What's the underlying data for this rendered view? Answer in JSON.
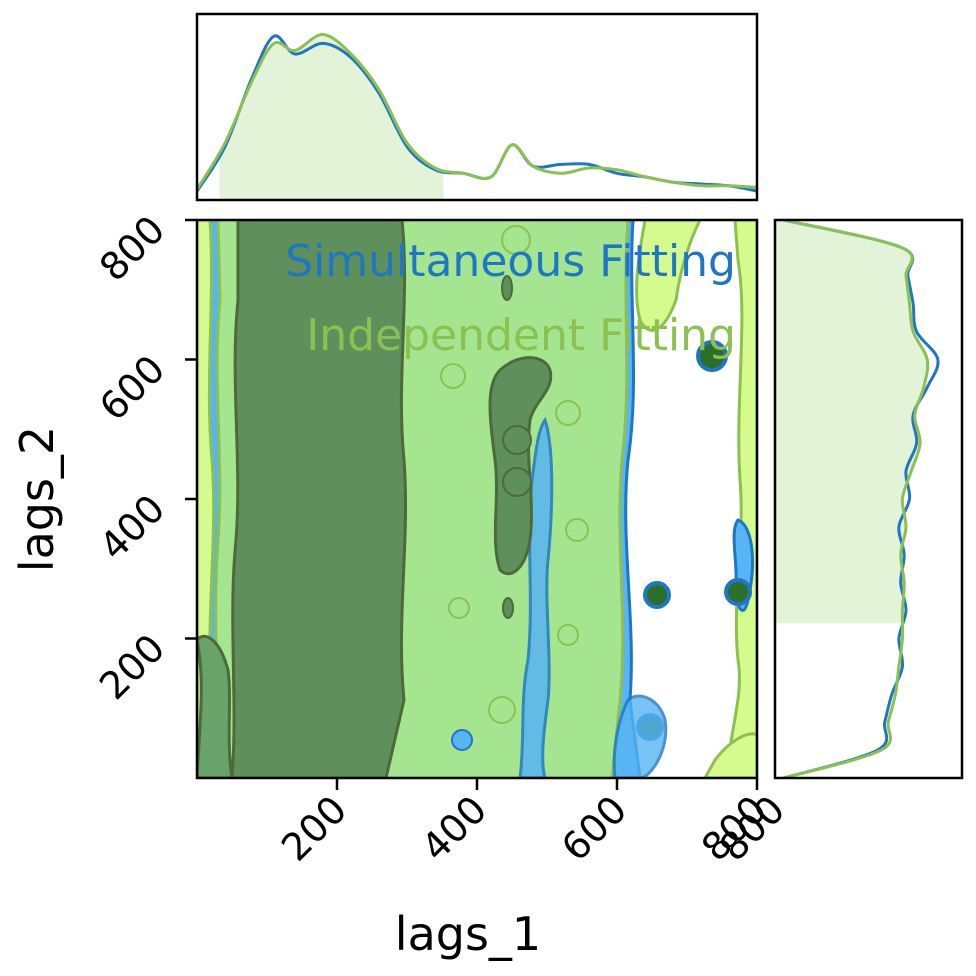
{
  "chart_data": {
    "type": "corner",
    "title": "",
    "xlabel": "lags_1",
    "ylabel": "lags_2",
    "xlim": [
      0,
      800
    ],
    "ylim": [
      0,
      800
    ],
    "x_ticks": [
      200,
      400,
      600,
      800
    ],
    "y_ticks": [
      200,
      400,
      600,
      800
    ],
    "x_tick_labels": [
      "200",
      "400",
      "600",
      "800"
    ],
    "y_tick_labels": [
      "200",
      "400",
      "600",
      "800"
    ],
    "right_tick_labels": [
      "800"
    ],
    "legend_placement": "top-right",
    "grid": false,
    "series": [
      {
        "name": "Simultaneous Fitting",
        "color": "#1f77c4",
        "fill_colors": [
          "#2a6f2a",
          "#57b4f5"
        ],
        "marginal_x": {
          "x": [
            0,
            40,
            80,
            110,
            140,
            180,
            220,
            260,
            300,
            340,
            380,
            420,
            450,
            480,
            520,
            560,
            600,
            640,
            680,
            720,
            760,
            800
          ],
          "density": [
            0.05,
            0.3,
            0.7,
            0.92,
            0.82,
            0.88,
            0.8,
            0.6,
            0.3,
            0.17,
            0.15,
            0.13,
            0.31,
            0.19,
            0.2,
            0.2,
            0.15,
            0.13,
            0.1,
            0.09,
            0.08,
            0.05
          ]
        },
        "marginal_y": {
          "y": [
            0,
            40,
            80,
            120,
            160,
            200,
            240,
            280,
            320,
            360,
            400,
            440,
            480,
            520,
            560,
            600,
            640,
            680,
            720,
            760,
            800
          ],
          "density": [
            0.05,
            0.58,
            0.62,
            0.66,
            0.72,
            0.7,
            0.74,
            0.71,
            0.73,
            0.7,
            0.76,
            0.74,
            0.8,
            0.78,
            0.86,
            0.92,
            0.8,
            0.78,
            0.75,
            0.72,
            0.05
          ]
        }
      },
      {
        "name": "Independent Fitting",
        "color": "#8cc152",
        "fill_colors": [
          "#5f8f5a",
          "#a6e58f",
          "#d5fb8f"
        ],
        "marginal_x": {
          "x": [
            0,
            40,
            80,
            110,
            140,
            180,
            220,
            260,
            300,
            340,
            380,
            420,
            450,
            480,
            520,
            560,
            600,
            640,
            680,
            720,
            760,
            800
          ],
          "density": [
            0.06,
            0.32,
            0.68,
            0.88,
            0.84,
            0.93,
            0.82,
            0.62,
            0.32,
            0.18,
            0.15,
            0.13,
            0.31,
            0.19,
            0.15,
            0.18,
            0.17,
            0.13,
            0.1,
            0.08,
            0.08,
            0.07
          ]
        },
        "marginal_y": {
          "y": [
            0,
            40,
            80,
            120,
            160,
            200,
            240,
            280,
            320,
            360,
            400,
            440,
            480,
            520,
            560,
            600,
            640,
            680,
            720,
            760,
            800
          ],
          "density": [
            0.05,
            0.6,
            0.64,
            0.68,
            0.7,
            0.72,
            0.72,
            0.73,
            0.71,
            0.74,
            0.72,
            0.77,
            0.82,
            0.79,
            0.84,
            0.86,
            0.78,
            0.76,
            0.74,
            0.72,
            0.05
          ]
        }
      }
    ],
    "marginal_x_shaded_range": [
      32,
      352
    ],
    "marginal_y_shaded_range": [
      222,
      800
    ],
    "contour_regions": [
      {
        "level": "outer",
        "color": "#57b4f5",
        "x_range": [
          0,
          630
        ],
        "y_range": [
          0,
          800
        ]
      },
      {
        "level": "middle",
        "color": "#a6e58f",
        "x_range": [
          10,
          620
        ],
        "y_range": [
          0,
          800
        ]
      },
      {
        "level": "inner",
        "color": "#2a6f2a",
        "x_range": [
          50,
          295
        ],
        "y_range": [
          0,
          800
        ]
      },
      {
        "level": "inner",
        "color": "#5f8f5a",
        "x_range": [
          420,
          500
        ],
        "y_range": [
          300,
          600
        ]
      }
    ]
  }
}
